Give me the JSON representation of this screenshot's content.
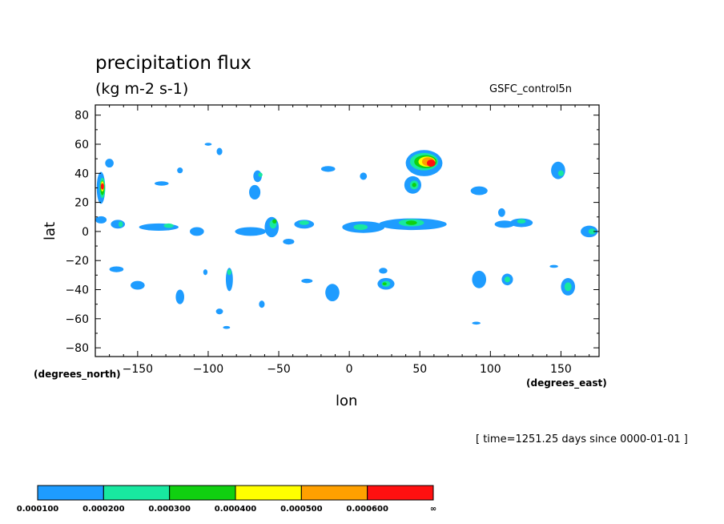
{
  "chart_data": {
    "type": "heatmap",
    "title": "precipitation flux",
    "units": "(kg m-2 s-1)",
    "model": "GSFC_control5n",
    "xlabel": "lon",
    "ylabel": "lat",
    "x_unit": "(degrees_east)",
    "y_unit": "(degrees_north)",
    "timestamp": "[ time=1251.25 days since 0000-01-01 ]",
    "xlim": [
      -180,
      177
    ],
    "ylim": [
      -86,
      87
    ],
    "x_ticks": [
      -150,
      -100,
      -50,
      0,
      50,
      100,
      150
    ],
    "x_tick_labels": [
      "-150",
      "-100",
      "-50",
      "0",
      "50",
      "100",
      "150"
    ],
    "y_ticks": [
      -80,
      -60,
      -40,
      -20,
      0,
      20,
      40,
      60,
      80
    ],
    "y_tick_labels": [
      "-80",
      "-60",
      "-40",
      "-20",
      "0",
      "20",
      "40",
      "60",
      "80"
    ],
    "colorbar": {
      "levels": [
        "0.000100",
        "0.000200",
        "0.000300",
        "0.000400",
        "0.000500",
        "0.000600",
        "∞"
      ],
      "colors": [
        "#1e9cff",
        "#18e8a0",
        "#10d010",
        "#ffff00",
        "#ffa000",
        "#ff1010"
      ]
    },
    "contour_cells": [
      {
        "lon": -176,
        "lat": 8,
        "w": 8,
        "h": 5,
        "level": 1
      },
      {
        "lon": -176,
        "lat": 30,
        "w": 6,
        "h": 22,
        "level": 1
      },
      {
        "lon": -175,
        "lat": 30,
        "w": 4,
        "h": 14,
        "level": 2
      },
      {
        "lon": -175,
        "lat": 30,
        "w": 3,
        "h": 10,
        "level": 3
      },
      {
        "lon": -175,
        "lat": 31,
        "w": 2,
        "h": 7,
        "level": 4
      },
      {
        "lon": -175,
        "lat": 31,
        "w": 2,
        "h": 5,
        "level": 5
      },
      {
        "lon": -175,
        "lat": 31,
        "w": 2,
        "h": 4,
        "level": 6
      },
      {
        "lon": -170,
        "lat": 47,
        "w": 6,
        "h": 6,
        "level": 1
      },
      {
        "lon": -164,
        "lat": 5,
        "w": 10,
        "h": 6,
        "level": 1
      },
      {
        "lon": -162,
        "lat": 5,
        "w": 3,
        "h": 4,
        "level": 2
      },
      {
        "lon": -165,
        "lat": -26,
        "w": 10,
        "h": 4,
        "level": 1
      },
      {
        "lon": -150,
        "lat": -37,
        "w": 10,
        "h": 6,
        "level": 1
      },
      {
        "lon": -135,
        "lat": 3,
        "w": 28,
        "h": 5,
        "level": 1
      },
      {
        "lon": -128,
        "lat": 4,
        "w": 7,
        "h": 3,
        "level": 2
      },
      {
        "lon": -120,
        "lat": -45,
        "w": 6,
        "h": 10,
        "level": 1
      },
      {
        "lon": -108,
        "lat": 0,
        "w": 10,
        "h": 6,
        "level": 1
      },
      {
        "lon": -100,
        "lat": 60,
        "w": 5,
        "h": 2,
        "level": 1
      },
      {
        "lon": -102,
        "lat": -28,
        "w": 3,
        "h": 4,
        "level": 1
      },
      {
        "lon": -120,
        "lat": 42,
        "w": 4,
        "h": 4,
        "level": 1
      },
      {
        "lon": -133,
        "lat": 33,
        "w": 10,
        "h": 3,
        "level": 1
      },
      {
        "lon": -92,
        "lat": 55,
        "w": 4,
        "h": 5,
        "level": 1
      },
      {
        "lon": -85,
        "lat": -33,
        "w": 5,
        "h": 16,
        "level": 1
      },
      {
        "lon": -85,
        "lat": -28,
        "w": 3,
        "h": 4,
        "level": 2
      },
      {
        "lon": -92,
        "lat": -55,
        "w": 5,
        "h": 4,
        "level": 1
      },
      {
        "lon": -87,
        "lat": -66,
        "w": 5,
        "h": 2,
        "level": 1
      },
      {
        "lon": -65,
        "lat": 38,
        "w": 6,
        "h": 8,
        "level": 1
      },
      {
        "lon": -63,
        "lat": 39,
        "w": 3,
        "h": 3,
        "level": 2
      },
      {
        "lon": -67,
        "lat": 27,
        "w": 8,
        "h": 10,
        "level": 1
      },
      {
        "lon": -70,
        "lat": 0,
        "w": 22,
        "h": 6,
        "level": 1
      },
      {
        "lon": -55,
        "lat": 3,
        "w": 10,
        "h": 14,
        "level": 1
      },
      {
        "lon": -54,
        "lat": 5,
        "w": 5,
        "h": 6,
        "level": 2
      },
      {
        "lon": -53,
        "lat": 7,
        "w": 3,
        "h": 3,
        "level": 3
      },
      {
        "lon": -32,
        "lat": 5,
        "w": 14,
        "h": 6,
        "level": 1
      },
      {
        "lon": -32,
        "lat": 6,
        "w": 7,
        "h": 3,
        "level": 2
      },
      {
        "lon": -43,
        "lat": -7,
        "w": 8,
        "h": 4,
        "level": 1
      },
      {
        "lon": -62,
        "lat": -50,
        "w": 4,
        "h": 5,
        "level": 1
      },
      {
        "lon": -30,
        "lat": -34,
        "w": 8,
        "h": 3,
        "level": 1
      },
      {
        "lon": -12,
        "lat": -42,
        "w": 10,
        "h": 12,
        "level": 1
      },
      {
        "lon": -15,
        "lat": 43,
        "w": 10,
        "h": 4,
        "level": 1
      },
      {
        "lon": 10,
        "lat": 3,
        "w": 30,
        "h": 8,
        "level": 1
      },
      {
        "lon": 8,
        "lat": 3,
        "w": 10,
        "h": 4,
        "level": 2
      },
      {
        "lon": 10,
        "lat": 38,
        "w": 5,
        "h": 5,
        "level": 1
      },
      {
        "lon": 26,
        "lat": -36,
        "w": 12,
        "h": 8,
        "level": 1
      },
      {
        "lon": 26,
        "lat": -36,
        "w": 6,
        "h": 4,
        "level": 2
      },
      {
        "lon": 25,
        "lat": -36,
        "w": 3,
        "h": 2,
        "level": 3
      },
      {
        "lon": 24,
        "lat": -27,
        "w": 6,
        "h": 4,
        "level": 1
      },
      {
        "lon": 45,
        "lat": 5,
        "w": 48,
        "h": 8,
        "level": 1
      },
      {
        "lon": 44,
        "lat": 6,
        "w": 18,
        "h": 5,
        "level": 2
      },
      {
        "lon": 44,
        "lat": 6,
        "w": 8,
        "h": 3,
        "level": 3
      },
      {
        "lon": 53,
        "lat": 47,
        "w": 26,
        "h": 18,
        "level": 1
      },
      {
        "lon": 53,
        "lat": 48,
        "w": 20,
        "h": 12,
        "level": 2
      },
      {
        "lon": 54,
        "lat": 48,
        "w": 16,
        "h": 9,
        "level": 3
      },
      {
        "lon": 55,
        "lat": 48,
        "w": 12,
        "h": 7,
        "level": 4
      },
      {
        "lon": 56,
        "lat": 48,
        "w": 9,
        "h": 6,
        "level": 5
      },
      {
        "lon": 58,
        "lat": 47,
        "w": 6,
        "h": 5,
        "level": 6
      },
      {
        "lon": 45,
        "lat": 32,
        "w": 12,
        "h": 12,
        "level": 1
      },
      {
        "lon": 46,
        "lat": 32,
        "w": 6,
        "h": 6,
        "level": 2
      },
      {
        "lon": 46,
        "lat": 32,
        "w": 3,
        "h": 3,
        "level": 3
      },
      {
        "lon": 92,
        "lat": -33,
        "w": 10,
        "h": 12,
        "level": 1
      },
      {
        "lon": 92,
        "lat": 28,
        "w": 12,
        "h": 6,
        "level": 1
      },
      {
        "lon": 90,
        "lat": -63,
        "w": 6,
        "h": 2,
        "level": 1
      },
      {
        "lon": 110,
        "lat": 5,
        "w": 14,
        "h": 5,
        "level": 1
      },
      {
        "lon": 112,
        "lat": -33,
        "w": 8,
        "h": 8,
        "level": 1
      },
      {
        "lon": 112,
        "lat": -33,
        "w": 4,
        "h": 4,
        "level": 2
      },
      {
        "lon": 122,
        "lat": 6,
        "w": 16,
        "h": 6,
        "level": 1
      },
      {
        "lon": 122,
        "lat": 7,
        "w": 6,
        "h": 3,
        "level": 2
      },
      {
        "lon": 148,
        "lat": 42,
        "w": 10,
        "h": 12,
        "level": 1
      },
      {
        "lon": 150,
        "lat": 40,
        "w": 4,
        "h": 4,
        "level": 2
      },
      {
        "lon": 155,
        "lat": -38,
        "w": 10,
        "h": 12,
        "level": 1
      },
      {
        "lon": 155,
        "lat": -38,
        "w": 5,
        "h": 6,
        "level": 2
      },
      {
        "lon": 170,
        "lat": 0,
        "w": 12,
        "h": 8,
        "level": 1
      },
      {
        "lon": 172,
        "lat": 0,
        "w": 5,
        "h": 4,
        "level": 2
      },
      {
        "lon": 145,
        "lat": -24,
        "w": 6,
        "h": 2,
        "level": 1
      },
      {
        "lon": 108,
        "lat": 13,
        "w": 5,
        "h": 6,
        "level": 1
      }
    ]
  }
}
